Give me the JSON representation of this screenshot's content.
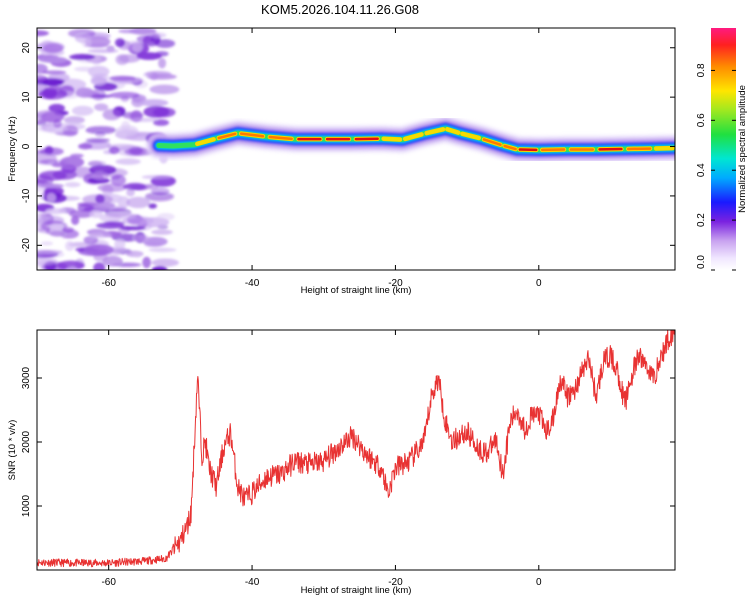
{
  "title": "KOM5.2026.104.11.26.G08",
  "chart_data": [
    {
      "type": "heatmap",
      "name": "spectrogram",
      "xlabel": "Height of straight line (km)",
      "ylabel": "Frequency (Hz)",
      "xlim": [
        -70,
        19
      ],
      "ylim": [
        -25,
        24
      ],
      "xticks": [
        -60,
        -40,
        -20,
        0
      ],
      "xtick_labels": [
        "-60",
        "-40",
        "-20",
        "0"
      ],
      "yticks": [
        -20,
        -10,
        0,
        10,
        20
      ],
      "ytick_labels": [
        "-20",
        "-10",
        "0",
        "10",
        "20"
      ],
      "colorbar": {
        "label": "Normalized spectral amplitude",
        "range": [
          0,
          0.97
        ],
        "ticks": [
          0.0,
          0.2,
          0.4,
          0.6,
          0.8
        ],
        "tick_labels": [
          "0.0",
          "0.2",
          "0.4",
          "0.6",
          "0.8"
        ]
      },
      "ridge": {
        "x": [
          -53,
          -51,
          -48,
          -45,
          -42,
          -38,
          -34,
          -30,
          -26,
          -22,
          -19,
          -16,
          -13,
          -11,
          -8,
          -5,
          -3,
          0,
          4,
          8,
          12,
          16,
          19
        ],
        "freq": [
          0.2,
          0.1,
          0.4,
          1.6,
          2.7,
          2.0,
          1.5,
          1.5,
          1.5,
          1.6,
          1.4,
          2.6,
          3.6,
          2.7,
          1.6,
          0.2,
          -0.6,
          -0.7,
          -0.6,
          -0.6,
          -0.5,
          -0.4,
          -0.3
        ],
        "amplitude": [
          0.3,
          0.45,
          0.55,
          0.7,
          0.95,
          0.65,
          0.9,
          0.9,
          0.9,
          0.85,
          0.6,
          0.8,
          0.6,
          0.7,
          0.75,
          0.85,
          0.8,
          0.9,
          0.75,
          0.9,
          0.8,
          0.75,
          0.6
        ]
      }
    },
    {
      "type": "line",
      "name": "snr",
      "xlabel": "Height of straight line (km)",
      "ylabel": "SNR (10 * v/v)",
      "xlim": [
        -70,
        19
      ],
      "ylim": [
        0,
        3750
      ],
      "xticks": [
        -60,
        -40,
        -20,
        0
      ],
      "xtick_labels": [
        "-60",
        "-40",
        "-20",
        "0"
      ],
      "yticks": [
        1000,
        2000,
        3000
      ],
      "ytick_labels": [
        "1000",
        "2000",
        "3000"
      ],
      "color": "#e83232",
      "x": [
        -70,
        -65,
        -60,
        -55,
        -52,
        -50,
        -49,
        -48.5,
        -47.6,
        -47,
        -46.5,
        -46,
        -45,
        -44,
        -43,
        -42,
        -41,
        -40,
        -38,
        -36,
        -34,
        -32,
        -30,
        -28,
        -26,
        -25,
        -24,
        -23,
        -22,
        -21,
        -20,
        -18,
        -16,
        -15,
        -14,
        -13,
        -12,
        -11,
        -10,
        -9,
        -8,
        -7,
        -6,
        -5,
        -4,
        -3,
        -2,
        -1,
        0,
        1,
        2,
        3,
        4,
        5,
        6,
        7,
        8,
        9,
        10,
        11,
        12,
        13,
        14,
        15,
        16,
        17,
        18,
        19
      ],
      "values": [
        120,
        110,
        110,
        140,
        180,
        450,
        700,
        900,
        3050,
        1800,
        2000,
        1600,
        1300,
        1900,
        2150,
        1300,
        1100,
        1200,
        1450,
        1500,
        1700,
        1650,
        1700,
        1900,
        2100,
        1950,
        1800,
        1700,
        1600,
        1200,
        1600,
        1700,
        2000,
        2700,
        3000,
        2300,
        2000,
        2100,
        2150,
        2000,
        1850,
        1850,
        2050,
        1500,
        2300,
        2500,
        2200,
        2400,
        2450,
        2150,
        2350,
        3000,
        2700,
        2800,
        3100,
        3300,
        2700,
        3250,
        3350,
        3100,
        2600,
        3050,
        3350,
        3200,
        3000,
        3300,
        3600,
        3750
      ]
    }
  ]
}
